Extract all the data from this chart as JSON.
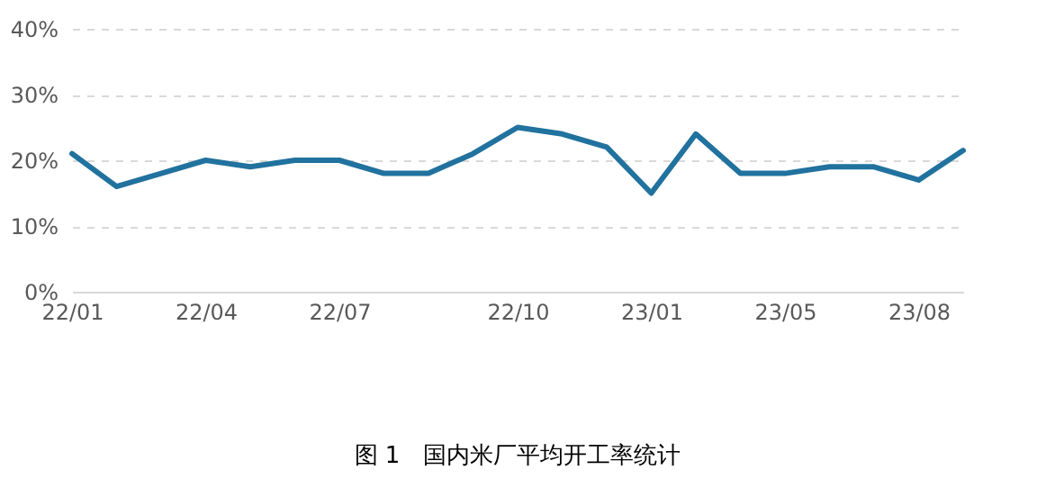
{
  "chart_data": {
    "type": "line",
    "title": "图 1　国内米厂平均开工率统计",
    "categories": [
      "22/01",
      null,
      null,
      "22/04",
      null,
      null,
      "22/07",
      null,
      null,
      null,
      "22/10",
      null,
      null,
      "23/01",
      null,
      null,
      "23/05",
      null,
      null,
      "23/08",
      null
    ],
    "series": [
      {
        "color": "#21729e",
        "values": [
          21,
          16,
          18,
          20,
          19,
          20,
          20,
          18,
          18,
          21,
          25,
          24,
          22,
          15,
          24,
          18,
          18,
          19,
          19,
          17,
          21.5
        ]
      }
    ],
    "ylim": [
      0,
      40
    ],
    "yticks": [
      {
        "value": 0,
        "label": "0%"
      },
      {
        "value": 10,
        "label": "10%"
      },
      {
        "value": 20,
        "label": "20%"
      },
      {
        "value": 30,
        "label": "30%"
      },
      {
        "value": 40,
        "label": "40%"
      }
    ],
    "grid": "y",
    "marker": "none",
    "line_style": "solid"
  }
}
